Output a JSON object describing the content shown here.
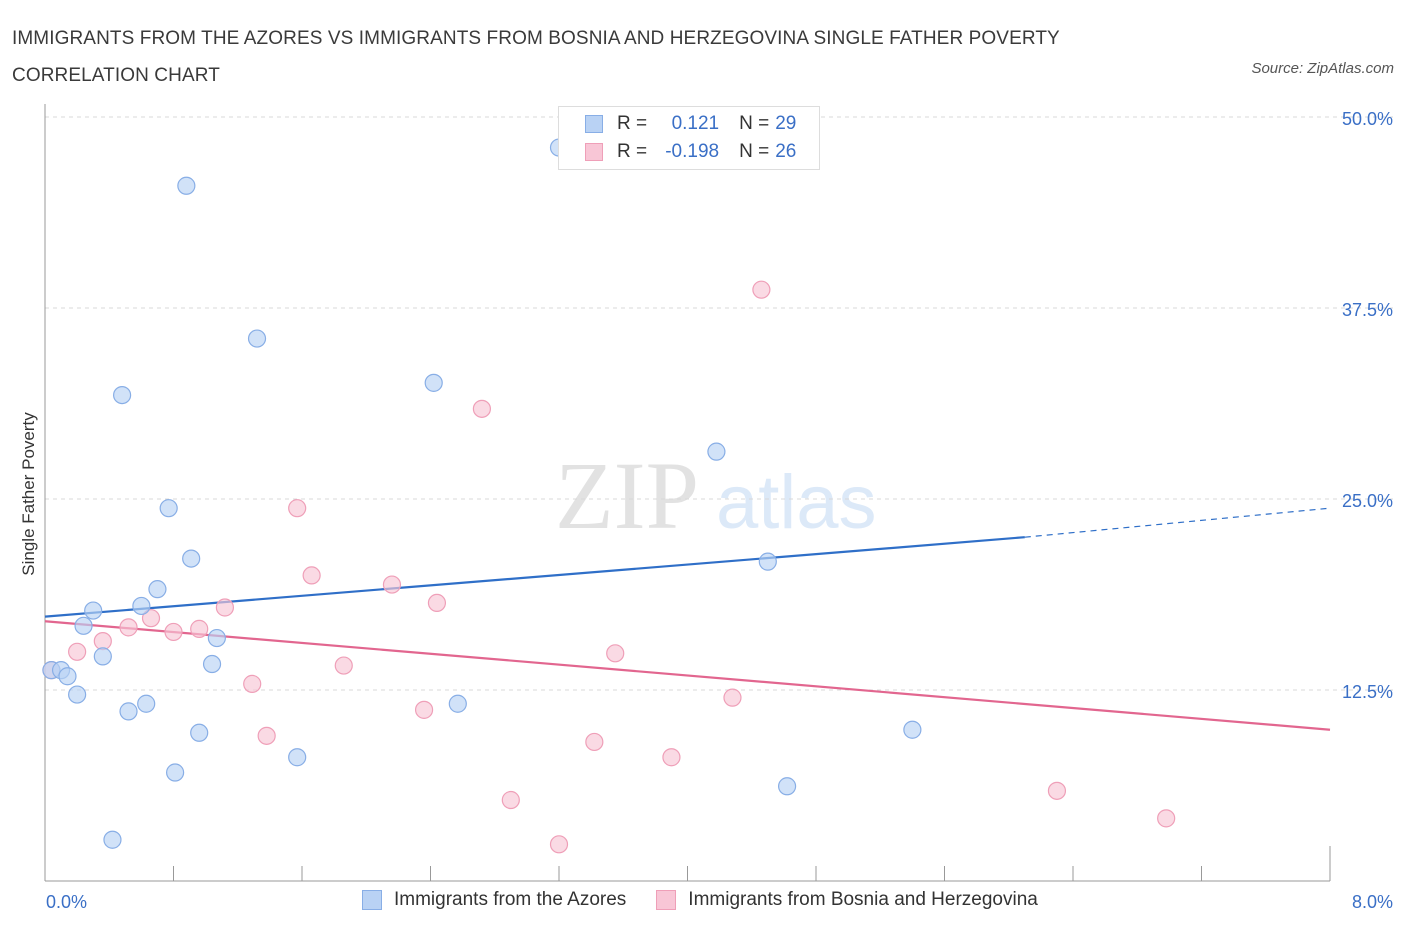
{
  "title": "IMMIGRANTS FROM THE AZORES VS IMMIGRANTS FROM BOSNIA AND HERZEGOVINA SINGLE FATHER POVERTY CORRELATION CHART",
  "source": "Source: ZipAtlas.com",
  "watermark": {
    "zip": "ZIP",
    "atlas": "atlas"
  },
  "legend_box": {
    "rows": [
      {
        "r_label": "R =",
        "r_value": "0.121",
        "n_label": "N =",
        "n_value": "29"
      },
      {
        "r_label": "R =",
        "r_value": "-0.198",
        "n_label": "N =",
        "n_value": "26"
      }
    ]
  },
  "colors": {
    "azores_fill": "#b9d2f4",
    "azores_stroke": "#88aee6",
    "azores_line": "#2f6fc8",
    "bosnia_fill": "#f8c6d6",
    "bosnia_stroke": "#ef9fb8",
    "bosnia_line": "#e2668f",
    "tick_label": "#3a6fc6",
    "grid": "#d8d8d8"
  },
  "chart_data": {
    "type": "scatter",
    "title": "IMMIGRANTS FROM THE AZORES VS IMMIGRANTS FROM BOSNIA AND HERZEGOVINA SINGLE FATHER POVERTY CORRELATION CHART",
    "xlabel": "",
    "ylabel": "Single Father Poverty",
    "xlim": [
      0,
      8.0
    ],
    "ylim": [
      0,
      50.0
    ],
    "x_tick_labels": [
      "0.0%",
      "8.0%"
    ],
    "y_ticks": [
      12.5,
      25.0,
      37.5,
      50.0
    ],
    "y_tick_labels": [
      "12.5%",
      "25.0%",
      "37.5%",
      "50.0%"
    ],
    "grid": "horizontal dashed",
    "legend": "bottom-center",
    "series": [
      {
        "name": "Immigrants from the Azores",
        "points": [
          [
            0.04,
            13.8
          ],
          [
            0.1,
            13.8
          ],
          [
            0.14,
            13.4
          ],
          [
            0.2,
            12.2
          ],
          [
            0.24,
            16.7
          ],
          [
            0.3,
            17.7
          ],
          [
            0.36,
            14.7
          ],
          [
            0.42,
            2.7
          ],
          [
            0.48,
            31.8
          ],
          [
            0.52,
            11.1
          ],
          [
            0.6,
            18.0
          ],
          [
            0.63,
            11.6
          ],
          [
            0.7,
            19.1
          ],
          [
            0.77,
            24.4
          ],
          [
            0.81,
            7.1
          ],
          [
            0.88,
            45.5
          ],
          [
            0.91,
            21.1
          ],
          [
            0.96,
            9.7
          ],
          [
            1.04,
            14.2
          ],
          [
            1.07,
            15.9
          ],
          [
            1.32,
            35.5
          ],
          [
            1.57,
            8.1
          ],
          [
            2.42,
            32.6
          ],
          [
            2.57,
            11.6
          ],
          [
            3.2,
            48.0
          ],
          [
            4.18,
            28.1
          ],
          [
            4.5,
            20.9
          ],
          [
            4.62,
            6.2
          ],
          [
            5.4,
            9.9
          ]
        ],
        "trend": {
          "x_start": 0.0,
          "y_start": 17.3,
          "x_end": 6.1,
          "y_end": 22.5,
          "x_dashed_end": 8.0,
          "y_dashed_end": 24.4
        }
      },
      {
        "name": "Immigrants from Bosnia and Herzegovina",
        "points": [
          [
            0.04,
            13.8
          ],
          [
            0.2,
            15.0
          ],
          [
            0.36,
            15.7
          ],
          [
            0.52,
            16.6
          ],
          [
            0.66,
            17.2
          ],
          [
            0.8,
            16.3
          ],
          [
            0.96,
            16.5
          ],
          [
            1.12,
            17.9
          ],
          [
            1.29,
            12.9
          ],
          [
            1.38,
            9.5
          ],
          [
            1.57,
            24.4
          ],
          [
            1.66,
            20.0
          ],
          [
            1.86,
            14.1
          ],
          [
            2.16,
            19.4
          ],
          [
            2.36,
            11.2
          ],
          [
            2.44,
            18.2
          ],
          [
            2.72,
            30.9
          ],
          [
            2.9,
            5.3
          ],
          [
            3.2,
            2.4
          ],
          [
            3.42,
            9.1
          ],
          [
            3.55,
            14.9
          ],
          [
            3.9,
            8.1
          ],
          [
            4.28,
            12.0
          ],
          [
            4.46,
            38.7
          ],
          [
            6.3,
            5.9
          ],
          [
            6.98,
            4.1
          ]
        ],
        "trend": {
          "x_start": 0.0,
          "y_start": 17.0,
          "x_end": 8.0,
          "y_end": 9.9
        }
      }
    ]
  }
}
